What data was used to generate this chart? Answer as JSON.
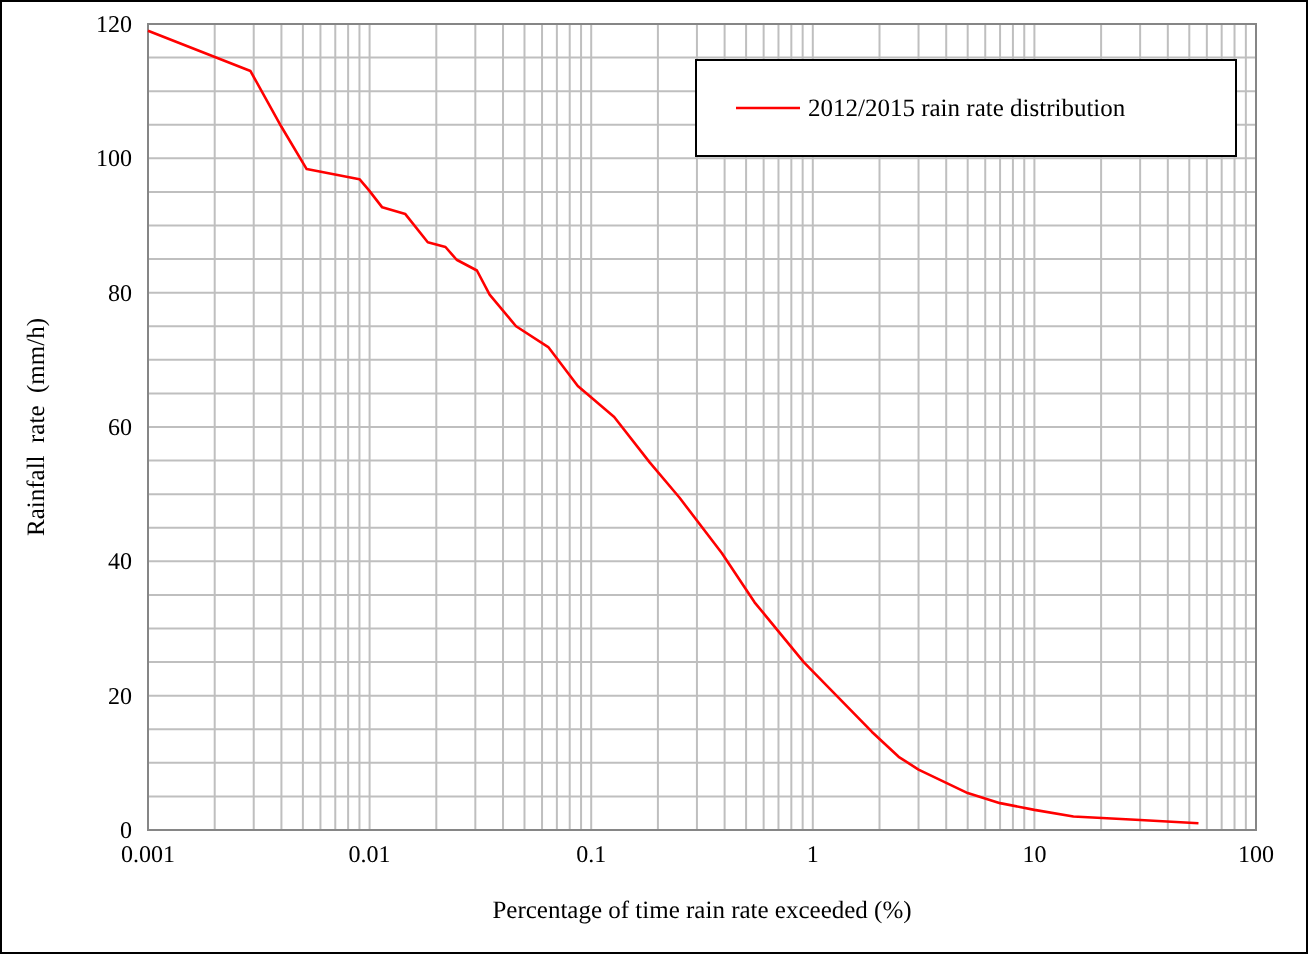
{
  "chart_data": {
    "type": "line",
    "xlabel": "Percentage of time rain rate exceeded (%)",
    "ylabel": "Rainfall  rate  (mm/h)",
    "log": "x",
    "grid": true,
    "legend": "top right",
    "marker": "none",
    "line_style": "solid",
    "xlim": [
      0.001,
      100
    ],
    "ylim": [
      0,
      120
    ],
    "xticks": [
      0.001,
      {
        "value": 0.002,
        "label": null
      },
      {
        "value": 0.003,
        "label": null
      },
      {
        "value": 0.004,
        "label": null
      },
      {
        "value": 0.005,
        "label": null
      },
      {
        "value": 0.006,
        "label": null
      },
      {
        "value": 0.007,
        "label": null
      },
      {
        "value": 0.008,
        "label": null
      },
      {
        "value": 0.009,
        "label": null
      },
      0.01,
      {
        "value": 0.02,
        "label": null
      },
      {
        "value": 0.03,
        "label": null
      },
      {
        "value": 0.04,
        "label": null
      },
      {
        "value": 0.05,
        "label": null
      },
      {
        "value": 0.06,
        "label": null
      },
      {
        "value": 0.07,
        "label": null
      },
      {
        "value": 0.08,
        "label": null
      },
      {
        "value": 0.09,
        "label": null
      },
      0.1,
      {
        "value": 0.2,
        "label": null
      },
      {
        "value": 0.3,
        "label": null
      },
      {
        "value": 0.4,
        "label": null
      },
      {
        "value": 0.5,
        "label": null
      },
      {
        "value": 0.6,
        "label": null
      },
      {
        "value": 0.7,
        "label": null
      },
      {
        "value": 0.8,
        "label": null
      },
      {
        "value": 0.9,
        "label": null
      },
      1,
      {
        "value": 2,
        "label": null
      },
      {
        "value": 3,
        "label": null
      },
      {
        "value": 4,
        "label": null
      },
      {
        "value": 5,
        "label": null
      },
      {
        "value": 6,
        "label": null
      },
      {
        "value": 7,
        "label": null
      },
      {
        "value": 8,
        "label": null
      },
      {
        "value": 9,
        "label": null
      },
      10,
      {
        "value": 20,
        "label": null
      },
      {
        "value": 30,
        "label": null
      },
      {
        "value": 40,
        "label": null
      },
      {
        "value": 50,
        "label": null
      },
      {
        "value": 60,
        "label": null
      },
      {
        "value": 70,
        "label": null
      },
      {
        "value": 80,
        "label": null
      },
      {
        "value": 90,
        "label": null
      },
      100
    ],
    "yticks": [
      0,
      {
        "value": 5,
        "label": null
      },
      {
        "value": 10,
        "label": null
      },
      {
        "value": 15,
        "label": null
      },
      20,
      {
        "value": 25,
        "label": null
      },
      {
        "value": 30,
        "label": null
      },
      {
        "value": 35,
        "label": null
      },
      40,
      {
        "value": 45,
        "label": null
      },
      {
        "value": 50,
        "label": null
      },
      {
        "value": 55,
        "label": null
      },
      60,
      {
        "value": 65,
        "label": null
      },
      {
        "value": 70,
        "label": null
      },
      {
        "value": 75,
        "label": null
      },
      80,
      {
        "value": 85,
        "label": null
      },
      {
        "value": 90,
        "label": null
      },
      {
        "value": 95,
        "label": null
      },
      100,
      {
        "value": 105,
        "label": null
      },
      {
        "value": 110,
        "label": null
      },
      {
        "value": 115,
        "label": null
      },
      120
    ],
    "series": [
      {
        "name": "2012/2015 rain rate distribution",
        "color": "#ff0000",
        "x": [
          0.001,
          0.0029,
          0.004,
          0.0052,
          0.009,
          0.0099,
          0.0114,
          0.0145,
          0.0183,
          0.022,
          0.0247,
          0.0305,
          0.0348,
          0.0458,
          0.064,
          0.087,
          0.127,
          0.184,
          0.25,
          0.389,
          0.546,
          0.91,
          1.85,
          2.44,
          3,
          5,
          7,
          10,
          15,
          30,
          55
        ],
        "values": [
          119,
          113,
          104.7,
          98.4,
          96.9,
          95.3,
          92.7,
          91.7,
          87.5,
          86.8,
          84.9,
          83.3,
          79.7,
          75,
          71.9,
          66.1,
          61.5,
          54.7,
          49.5,
          41.2,
          33.9,
          25,
          14.6,
          10.9,
          9,
          5.5,
          4,
          3,
          2,
          1.5,
          1
        ]
      }
    ]
  }
}
